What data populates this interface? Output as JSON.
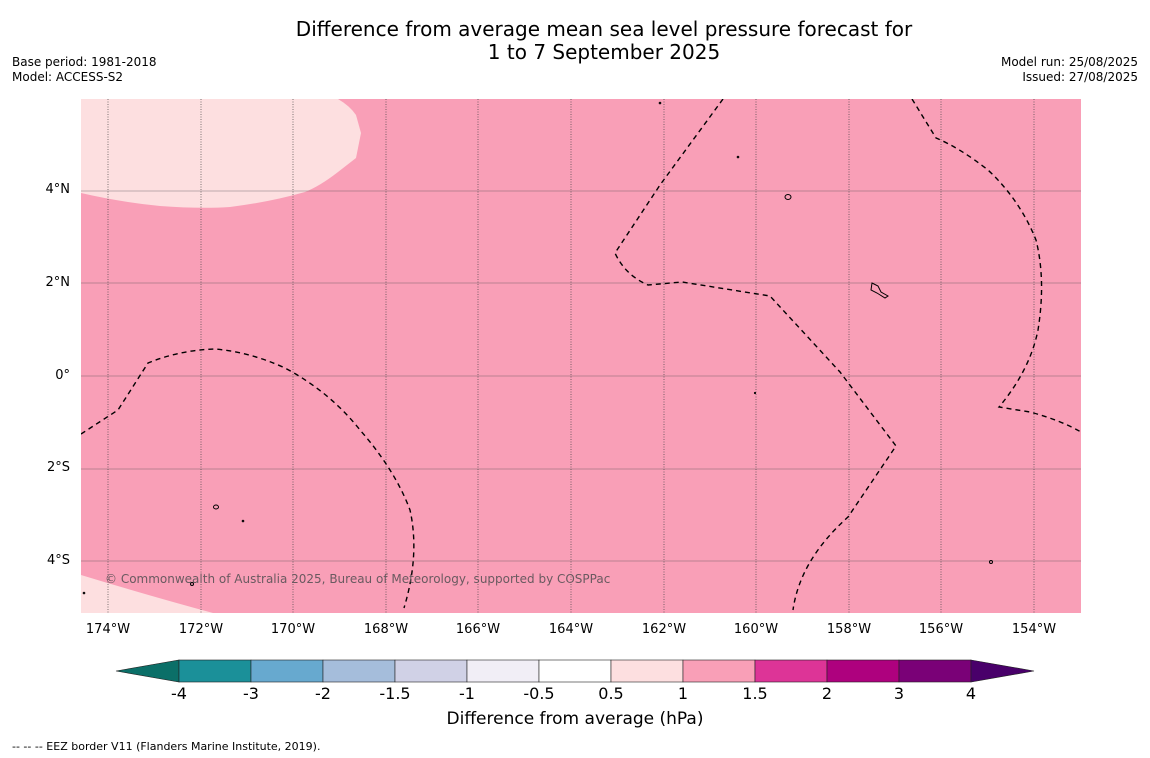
{
  "header": {
    "title_line1": "Difference from average mean sea level pressure forecast for",
    "title_line2": "1 to 7 September 2025",
    "base_period": "Base period: 1981-2018",
    "model": "Model: ACCESS-S2",
    "model_run": "Model run: 25/08/2025",
    "issued": "Issued: 27/08/2025"
  },
  "map": {
    "latitude_labels": [
      "4°N",
      "2°N",
      "0°",
      "2°S",
      "4°S"
    ],
    "longitude_labels": [
      "174°W",
      "172°W",
      "170°W",
      "168°W",
      "166°W",
      "164°W",
      "162°W",
      "160°W",
      "158°W",
      "156°W",
      "154°W"
    ],
    "copyright": "© Commonwealth of Australia 2025, Bureau of Meteorology, supported by COSPPac",
    "colors": {
      "anomaly_1_to_1_5": "#f99fb7",
      "anomaly_0_5_to_1": "#fddfe0"
    }
  },
  "colorbar": {
    "labels": [
      "-4",
      "-3",
      "-2",
      "-1.5",
      "-1",
      "-0.5",
      "0.5",
      "1",
      "1.5",
      "2",
      "3",
      "4"
    ],
    "colors": [
      "#0b6f68",
      "#1b9099",
      "#67a9cf",
      "#a5bddb",
      "#d0d1e6",
      "#f1eef6",
      "#ffffff",
      "#fddfe0",
      "#f99fb7",
      "#dd3497",
      "#ae017e",
      "#7a0177",
      "#49006a"
    ],
    "title": "Difference from average (hPa)"
  },
  "footnote": "--  --  -- EEZ border V11 (Flanders Marine Institute, 2019)."
}
